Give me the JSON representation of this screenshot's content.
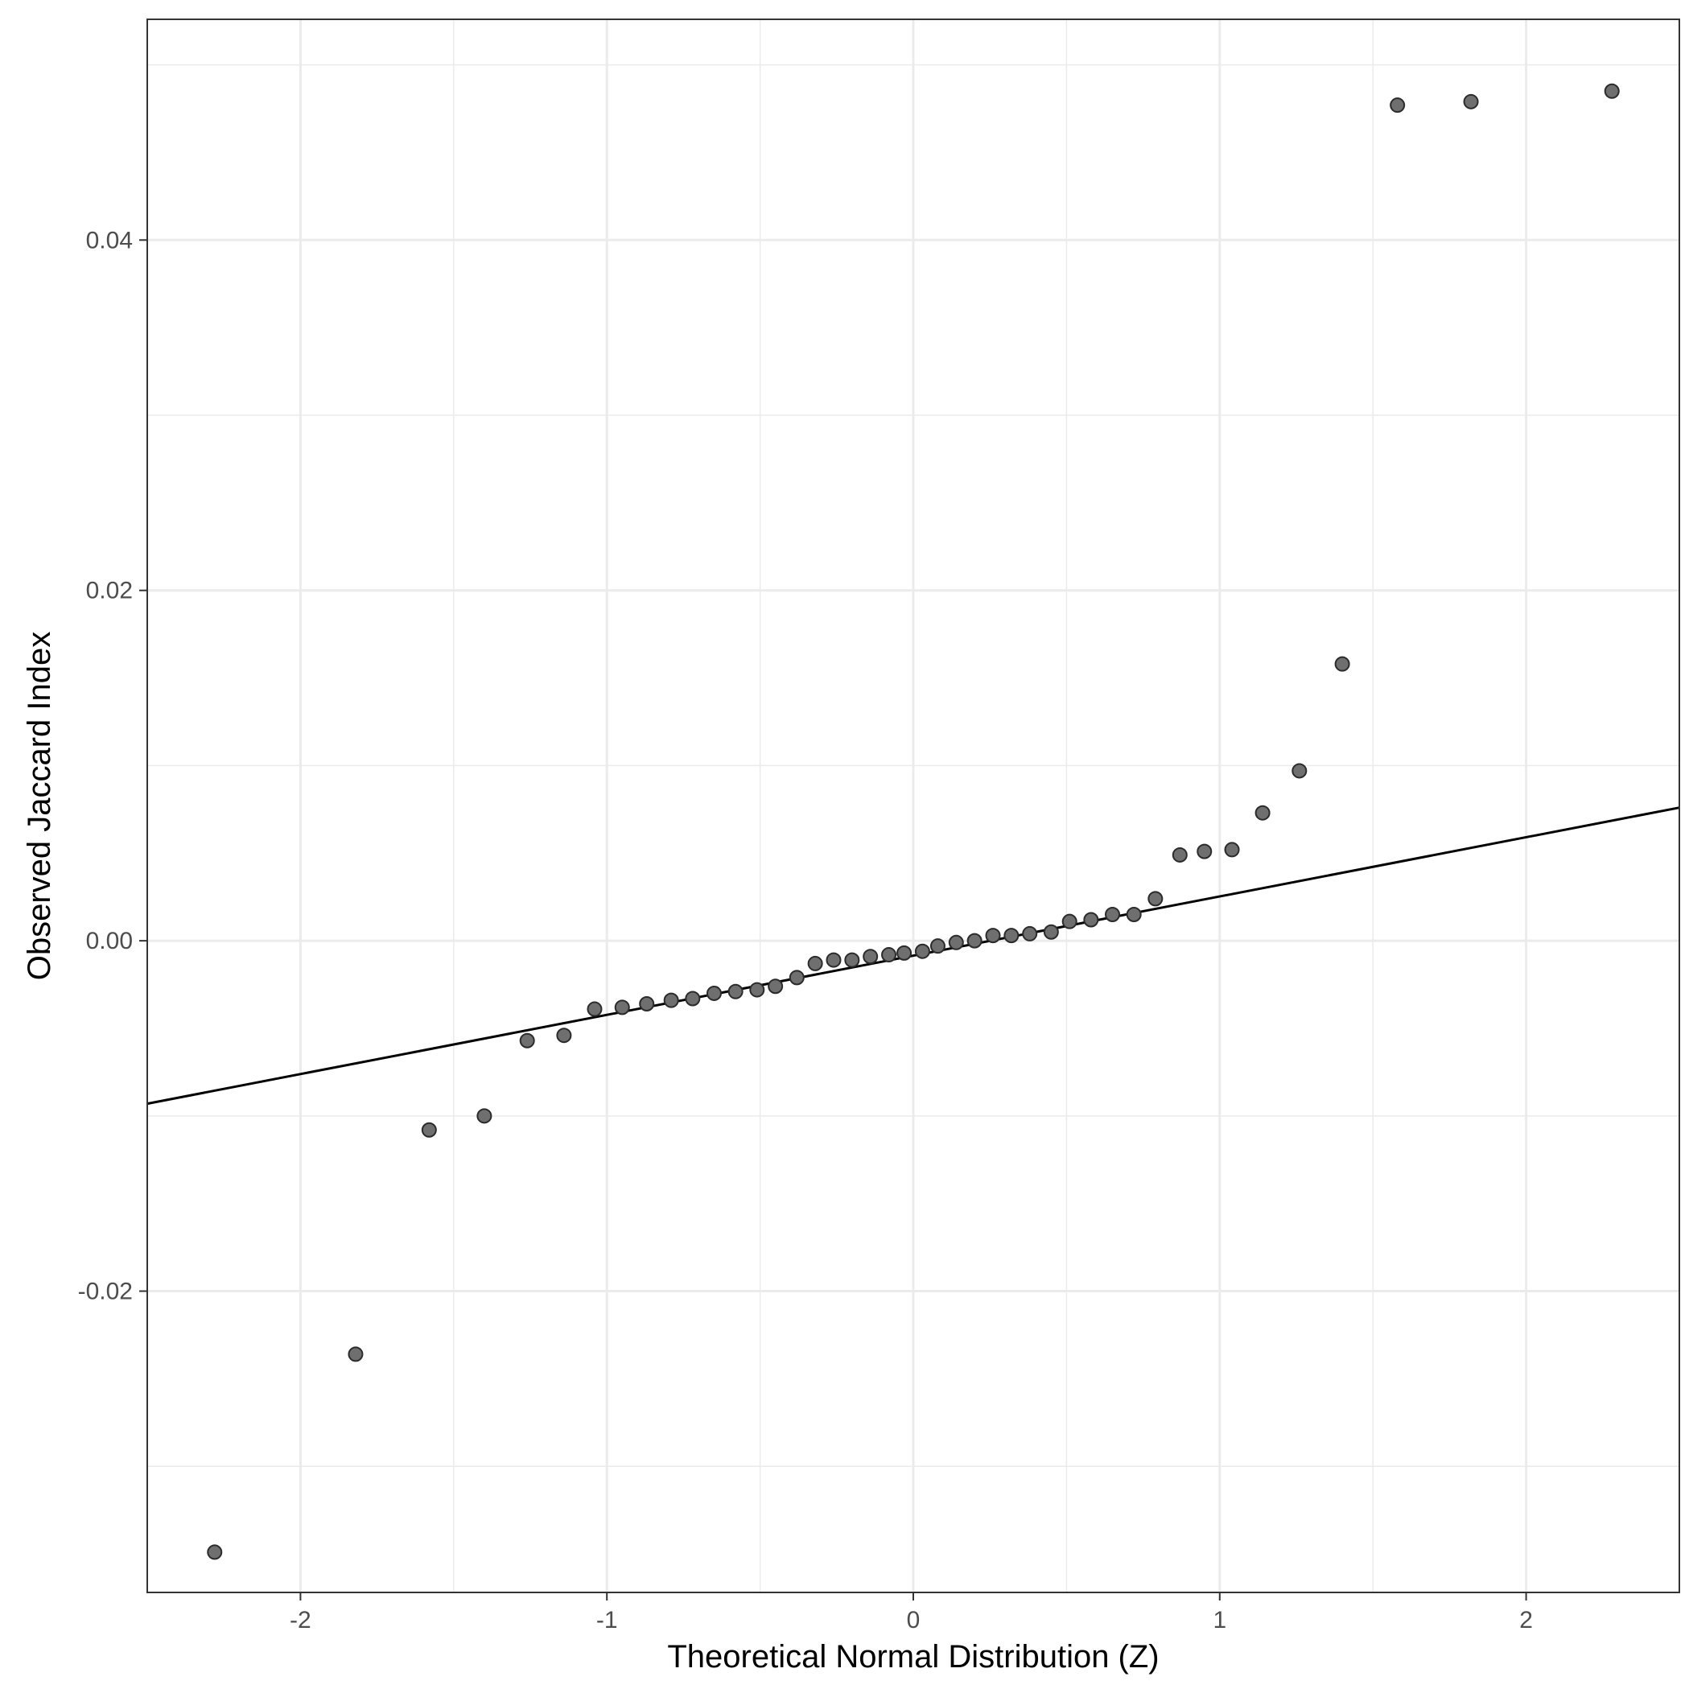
{
  "chart_data": {
    "type": "scatter",
    "title": "",
    "xlabel": "Theoretical Normal Distribution (Z)",
    "ylabel": "Observed Jaccard Index",
    "xlim": [
      -2.5,
      2.5
    ],
    "ylim": [
      -0.0372,
      0.0526
    ],
    "x_major_ticks": [
      -2,
      -1,
      0,
      1,
      2
    ],
    "x_major_tick_labels": [
      "-2",
      "-1",
      "0",
      "1",
      "2"
    ],
    "x_minor_gridlines": [
      -1.5,
      -0.5,
      0.5,
      1.5
    ],
    "y_major_ticks": [
      -0.02,
      0.0,
      0.02,
      0.04
    ],
    "y_major_tick_labels": [
      "-0.02",
      "0.00",
      "0.02",
      "0.04"
    ],
    "y_minor_gridlines": [
      -0.03,
      -0.01,
      0.01,
      0.03,
      0.05
    ],
    "grid": true,
    "legend": "none",
    "colors": {
      "point_fill": "#6f6f6f",
      "point_stroke": "#2b2b2b",
      "line": "#000000",
      "grid": "#ebebeb",
      "panel_border": "#333333"
    },
    "reference_line": {
      "x": [
        -2.5,
        2.5
      ],
      "y": [
        -0.0093,
        0.0076
      ]
    },
    "series": [
      {
        "x": [
          -2.28,
          -1.82,
          -1.58,
          -1.4,
          -1.26,
          -1.14,
          -1.04,
          -0.95,
          -0.87,
          -0.79,
          -0.72,
          -0.65,
          -0.58,
          -0.51,
          -0.45,
          -0.38,
          -0.32,
          -0.26,
          -0.2,
          -0.14,
          -0.08,
          -0.03,
          0.03,
          0.08,
          0.14,
          0.2,
          0.26,
          0.32,
          0.38,
          0.45,
          0.51,
          0.58,
          0.65,
          0.72,
          0.79,
          0.87,
          0.95,
          1.04,
          1.14,
          1.26,
          1.4,
          1.58,
          1.82,
          2.28
        ],
        "y": [
          -0.0349,
          -0.0236,
          -0.0108,
          -0.01,
          -0.0057,
          -0.0054,
          -0.0039,
          -0.0038,
          -0.0036,
          -0.0034,
          -0.0033,
          -0.003,
          -0.0029,
          -0.0028,
          -0.0026,
          -0.0021,
          -0.0013,
          -0.0011,
          -0.0011,
          -0.0009,
          -0.0008,
          -0.0007,
          -0.0006,
          -0.0003,
          -0.0001,
          0.0,
          0.0003,
          0.0003,
          0.0004,
          0.0005,
          0.0011,
          0.0012,
          0.0015,
          0.0015,
          0.0024,
          0.0049,
          0.0051,
          0.0052,
          0.0073,
          0.0097,
          0.0158,
          0.0477,
          0.0479,
          0.0485
        ]
      }
    ]
  }
}
